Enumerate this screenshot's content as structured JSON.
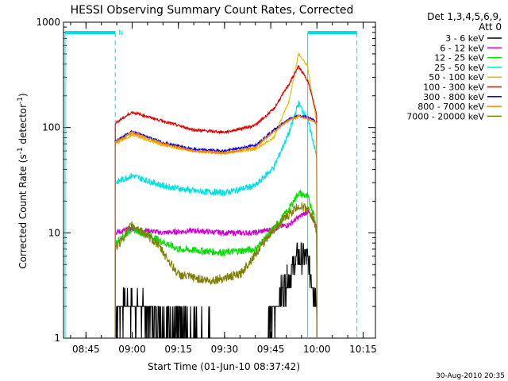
{
  "chart_data": {
    "type": "line",
    "title": "HESSI Observing Summary Count Rates, Corrected",
    "xlabel": "Start Time (01-Jun-10 08:37:42)",
    "ylabel": "Corrected Count Rate (s",
    "ylabel_sup1": "-1",
    "ylabel_mid": " detector",
    "ylabel_sup2": "-1",
    "ylabel_end": ")",
    "x_unit": "minutes",
    "x_range": [
      "08:37:42",
      "10:19:00"
    ],
    "y_scale": "log",
    "ylim": [
      1,
      1000
    ],
    "y_ticks": [
      "1",
      "10",
      "100",
      "1000"
    ],
    "x_ticks": [
      "08:45",
      "09:00",
      "09:15",
      "09:30",
      "09:45",
      "10:00",
      "10:15"
    ],
    "grid": false,
    "legend": {
      "position": "top-right outside",
      "header_line1": "Det 1,3,4,5,6,9,",
      "header_line2": "Att 0"
    },
    "footer_date": "30-Aug-2010 20:35",
    "night_marker_label": "N",
    "segments": {
      "day_start": "08:54:30",
      "day_end": "09:57:00",
      "night_end": "10:13:00"
    },
    "series": [
      {
        "name": "3 - 6 keV",
        "color": "#000000",
        "x": [
          "08:54:30",
          "08:56",
          "09:00",
          "09:10",
          "09:30",
          "09:42",
          "09:45",
          "09:48",
          "09:51",
          "09:54",
          "09:57",
          "09:59",
          "10:00"
        ],
        "y": [
          1.5,
          2,
          2,
          1.5,
          1,
          1,
          1.5,
          2.5,
          4,
          6,
          5.5,
          3,
          2
        ]
      },
      {
        "name": "6 - 12 keV",
        "color": "#d000d0",
        "x": [
          "08:54:30",
          "09:00",
          "09:10",
          "09:20",
          "09:30",
          "09:40",
          "09:46",
          "09:51",
          "09:54",
          "09:57",
          "09:59",
          "10:00"
        ],
        "y": [
          10,
          11,
          10,
          10.5,
          10,
          10,
          11,
          12,
          14,
          16,
          13,
          11
        ]
      },
      {
        "name": "12 - 25 keV",
        "color": "#00e000",
        "x": [
          "08:54:30",
          "09:00",
          "09:07",
          "09:15",
          "09:30",
          "09:40",
          "09:46",
          "09:51",
          "09:54",
          "09:57",
          "09:59",
          "10:00"
        ],
        "y": [
          8,
          11,
          9,
          7,
          6.5,
          7,
          11,
          17,
          24,
          22,
          15,
          10
        ]
      },
      {
        "name": "25 - 50 keV",
        "color": "#00e0e0",
        "x": [
          "08:54:30",
          "09:00",
          "09:10",
          "09:20",
          "09:30",
          "09:40",
          "09:46",
          "09:51",
          "09:54",
          "09:57",
          "09:59",
          "10:00"
        ],
        "y": [
          30,
          35,
          28,
          25,
          24,
          28,
          42,
          90,
          170,
          120,
          70,
          50
        ]
      },
      {
        "name": "50 - 100 keV",
        "color": "#e0c000",
        "x": [
          "08:54:30",
          "09:00",
          "09:10",
          "09:20",
          "09:30",
          "09:40",
          "09:46",
          "09:51",
          "09:54",
          "09:57",
          "09:59",
          "10:00"
        ],
        "y": [
          70,
          85,
          68,
          60,
          58,
          62,
          80,
          180,
          500,
          380,
          160,
          110
        ]
      },
      {
        "name": "100 - 300 keV",
        "color": "#e00000",
        "x": [
          "08:54:30",
          "09:00",
          "09:10",
          "09:20",
          "09:30",
          "09:40",
          "09:46",
          "09:51",
          "09:54",
          "09:57",
          "09:59",
          "10:00"
        ],
        "y": [
          110,
          140,
          115,
          95,
          90,
          105,
          150,
          260,
          380,
          280,
          170,
          130
        ]
      },
      {
        "name": "300 - 800 keV",
        "color": "#0000e0",
        "x": [
          "08:54:30",
          "09:00",
          "09:10",
          "09:20",
          "09:30",
          "09:40",
          "09:46",
          "09:51",
          "09:54",
          "09:57",
          "09:59",
          "10:00"
        ],
        "y": [
          75,
          92,
          72,
          62,
          60,
          68,
          95,
          120,
          130,
          125,
          118,
          110
        ]
      },
      {
        "name": "800 - 7000 keV",
        "color": "#ff8000",
        "x": [
          "08:54:30",
          "09:00",
          "09:10",
          "09:20",
          "09:30",
          "09:40",
          "09:46",
          "09:51",
          "09:54",
          "09:57",
          "09:59",
          "10:00"
        ],
        "y": [
          72,
          90,
          70,
          60,
          57,
          65,
          92,
          118,
          128,
          122,
          115,
          108
        ]
      },
      {
        "name": "7000 - 20000 keV",
        "color": "#808000",
        "x": [
          "08:54:30",
          "09:00",
          "09:08",
          "09:15",
          "09:25",
          "09:35",
          "09:45",
          "09:51",
          "09:54",
          "09:57",
          "09:59",
          "10:00"
        ],
        "y": [
          7,
          12,
          8,
          4,
          3.5,
          4,
          10,
          15,
          18,
          17,
          13,
          10
        ]
      }
    ]
  }
}
